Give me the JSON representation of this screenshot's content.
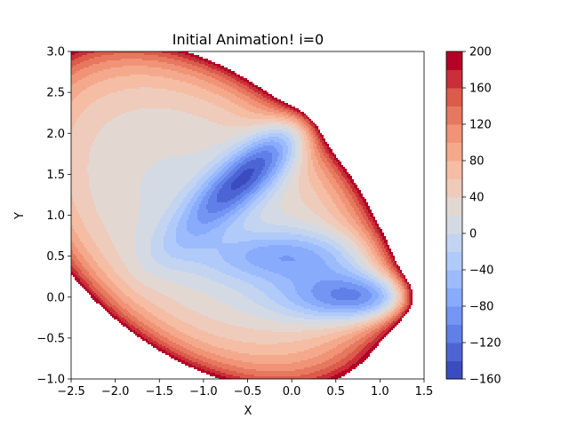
{
  "chart_data": {
    "type": "contourf",
    "title": "Initial Animation! i=0",
    "xlabel": "X",
    "ylabel": "Y",
    "xlim": [
      -2.5,
      1.5
    ],
    "ylim": [
      -1.0,
      3.0
    ],
    "x_ticks": [
      "−2.5",
      "−2.0",
      "−1.5",
      "−1.0",
      "−0.5",
      "0.0",
      "0.5",
      "1.0",
      "1.5"
    ],
    "x_tick_values": [
      -2.5,
      -2.0,
      -1.5,
      -1.0,
      -0.5,
      0.0,
      0.5,
      1.0,
      1.5
    ],
    "y_ticks": [
      "−1.0",
      "−0.5",
      "0.0",
      "0.5",
      "1.0",
      "1.5",
      "2.0",
      "2.5",
      "3.0"
    ],
    "y_tick_values": [
      -1.0,
      -0.5,
      0.0,
      0.5,
      1.0,
      1.5,
      2.0,
      2.5,
      3.0
    ],
    "function": "Muller-Brown potential (clipped at 200)",
    "colormap": "coolwarm",
    "levels": [
      -160,
      -140,
      -120,
      -100,
      -80,
      -60,
      -40,
      -20,
      0,
      20,
      40,
      60,
      80,
      100,
      120,
      140,
      160,
      180,
      200
    ],
    "colorbar": {
      "ticks": [
        "−160",
        "−120",
        "−80",
        "−40",
        "0",
        "40",
        "80",
        "120",
        "160",
        "200"
      ],
      "tick_values": [
        -160,
        -120,
        -80,
        -40,
        0,
        40,
        80,
        120,
        160,
        200
      ]
    },
    "minima": [
      {
        "x": -0.558,
        "y": 1.442,
        "value": -146.7
      },
      {
        "x": 0.623,
        "y": 0.028,
        "value": -108.2
      },
      {
        "x": -0.05,
        "y": 0.467,
        "value": -80.8
      }
    ]
  }
}
